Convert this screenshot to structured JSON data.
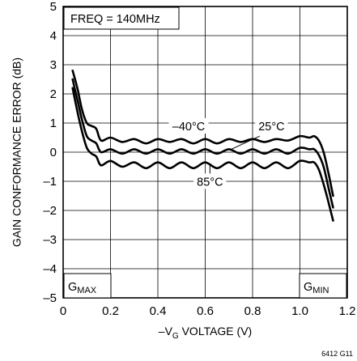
{
  "chart_data": {
    "type": "line",
    "title": "",
    "xlabel": "–VG VOLTAGE (V)",
    "xlabel_main": "–V",
    "xlabel_sub": "G",
    "xlabel_rest": " VOLTAGE (V)",
    "ylabel": "GAIN CONFORMANCE ERROR (dB)",
    "xlim": [
      0,
      1.2
    ],
    "ylim": [
      -5,
      5
    ],
    "x_ticks": [
      0,
      0.2,
      0.4,
      0.6,
      0.8,
      1.0,
      1.2
    ],
    "x_tick_labels": [
      "0",
      "0.2",
      "0.4",
      "0.6",
      "0.8",
      "1.0",
      "1.2"
    ],
    "y_ticks": [
      -5,
      -4,
      -3,
      -2,
      -1,
      0,
      1,
      2,
      3,
      4,
      5
    ],
    "y_tick_labels": [
      "–5",
      "–4",
      "–3",
      "–2",
      "–1",
      "0",
      "1",
      "2",
      "3",
      "4",
      "5"
    ],
    "grid": true,
    "annotations": {
      "freq": "FREQ = 140MHz",
      "gmax_main": "G",
      "gmax_sub": "MAX",
      "gmin_main": "G",
      "gmin_sub": "MIN",
      "fig_id": "6412 G11"
    },
    "series": [
      {
        "name": "–40°C",
        "x": [
          0.04,
          0.06,
          0.08,
          0.1,
          0.12,
          0.14,
          0.16,
          0.2,
          0.25,
          0.3,
          0.35,
          0.4,
          0.45,
          0.5,
          0.55,
          0.6,
          0.65,
          0.7,
          0.75,
          0.8,
          0.85,
          0.9,
          0.95,
          1.0,
          1.04,
          1.06,
          1.08,
          1.1,
          1.12,
          1.14
        ],
        "y": [
          2.8,
          2.2,
          1.45,
          1.0,
          0.9,
          0.8,
          0.4,
          0.5,
          0.35,
          0.45,
          0.3,
          0.45,
          0.35,
          0.45,
          0.3,
          0.45,
          0.3,
          0.45,
          0.35,
          0.45,
          0.35,
          0.45,
          0.4,
          0.55,
          0.5,
          0.55,
          0.4,
          0.0,
          -0.7,
          -1.5
        ]
      },
      {
        "name": "25°C",
        "x": [
          0.04,
          0.06,
          0.08,
          0.1,
          0.12,
          0.14,
          0.16,
          0.2,
          0.25,
          0.3,
          0.35,
          0.4,
          0.45,
          0.5,
          0.55,
          0.6,
          0.65,
          0.7,
          0.75,
          0.8,
          0.85,
          0.9,
          0.95,
          1.0,
          1.04,
          1.06,
          1.08,
          1.1,
          1.12,
          1.14
        ],
        "y": [
          2.5,
          1.8,
          1.1,
          0.55,
          0.4,
          0.3,
          0.0,
          0.1,
          -0.05,
          0.1,
          -0.05,
          0.1,
          -0.05,
          0.1,
          -0.05,
          0.1,
          -0.05,
          0.1,
          -0.05,
          0.1,
          -0.05,
          0.1,
          -0.05,
          0.15,
          0.1,
          0.1,
          -0.1,
          -0.5,
          -1.2,
          -1.9
        ]
      },
      {
        "name": "85°C",
        "x": [
          0.04,
          0.06,
          0.08,
          0.1,
          0.12,
          0.14,
          0.16,
          0.2,
          0.25,
          0.3,
          0.35,
          0.4,
          0.45,
          0.5,
          0.55,
          0.6,
          0.65,
          0.7,
          0.75,
          0.8,
          0.85,
          0.9,
          0.95,
          1.0,
          1.04,
          1.06,
          1.08,
          1.1,
          1.12,
          1.14
        ],
        "y": [
          2.2,
          1.4,
          0.7,
          0.15,
          -0.05,
          -0.15,
          -0.45,
          -0.3,
          -0.5,
          -0.35,
          -0.55,
          -0.35,
          -0.55,
          -0.35,
          -0.55,
          -0.35,
          -0.55,
          -0.35,
          -0.55,
          -0.35,
          -0.55,
          -0.35,
          -0.55,
          -0.3,
          -0.35,
          -0.35,
          -0.6,
          -1.1,
          -1.7,
          -2.35
        ]
      }
    ],
    "series_labels": [
      {
        "text": "–40°C",
        "x": 0.53,
        "y": 0.75,
        "series": 0
      },
      {
        "text": "25°C",
        "x": 0.88,
        "y": 0.75,
        "series": 1
      },
      {
        "text": "85°C",
        "x": 0.62,
        "y": -1.15,
        "series": 2
      }
    ]
  }
}
